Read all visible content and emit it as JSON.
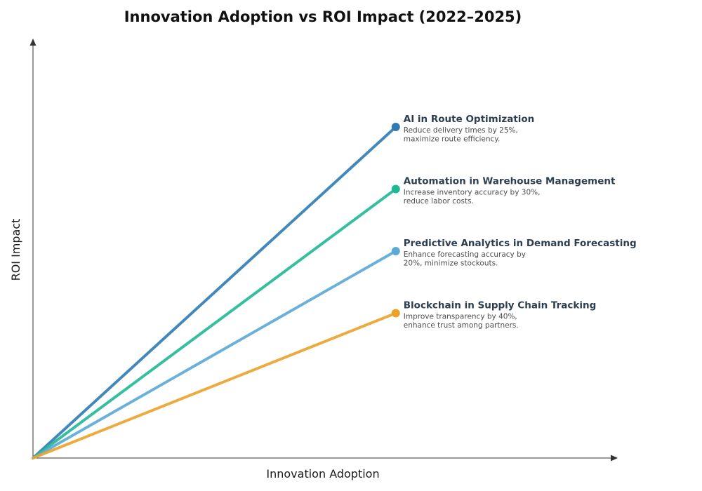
{
  "chart_data": {
    "type": "line",
    "title": "Innovation Adoption vs ROI Impact (2022–2025)",
    "xlabel": "Innovation Adoption",
    "ylabel": "ROI Impact",
    "xlim": [
      0,
      10
    ],
    "ylim": [
      0,
      10
    ],
    "grid": false,
    "legend": "none",
    "series": [
      {
        "name": "AI in Route Optimization",
        "description": [
          "Reduce delivery times by 25%,",
          "maximize route efficiency."
        ],
        "color": "#2e7bb3",
        "x": [
          0,
          6.5
        ],
        "y": [
          0,
          8
        ]
      },
      {
        "name": "Automation in Warehouse Management",
        "description": [
          "Increase inventory accuracy by 30%,",
          "reduce labor costs."
        ],
        "color": "#1fb894",
        "x": [
          0,
          6.5
        ],
        "y": [
          0,
          6.5
        ]
      },
      {
        "name": "Predictive Analytics in Demand Forecasting",
        "description": [
          "Enhance forecasting accuracy by",
          "20%, minimize stockouts."
        ],
        "color": "#5aa9d6",
        "x": [
          0,
          6.5
        ],
        "y": [
          0,
          5
        ]
      },
      {
        "name": "Blockchain in Supply Chain Tracking",
        "description": [
          "Improve transparency by 40%,",
          "enhance trust among partners."
        ],
        "color": "#eba22a",
        "x": [
          0,
          6.5
        ],
        "y": [
          0,
          3.5
        ]
      }
    ]
  }
}
